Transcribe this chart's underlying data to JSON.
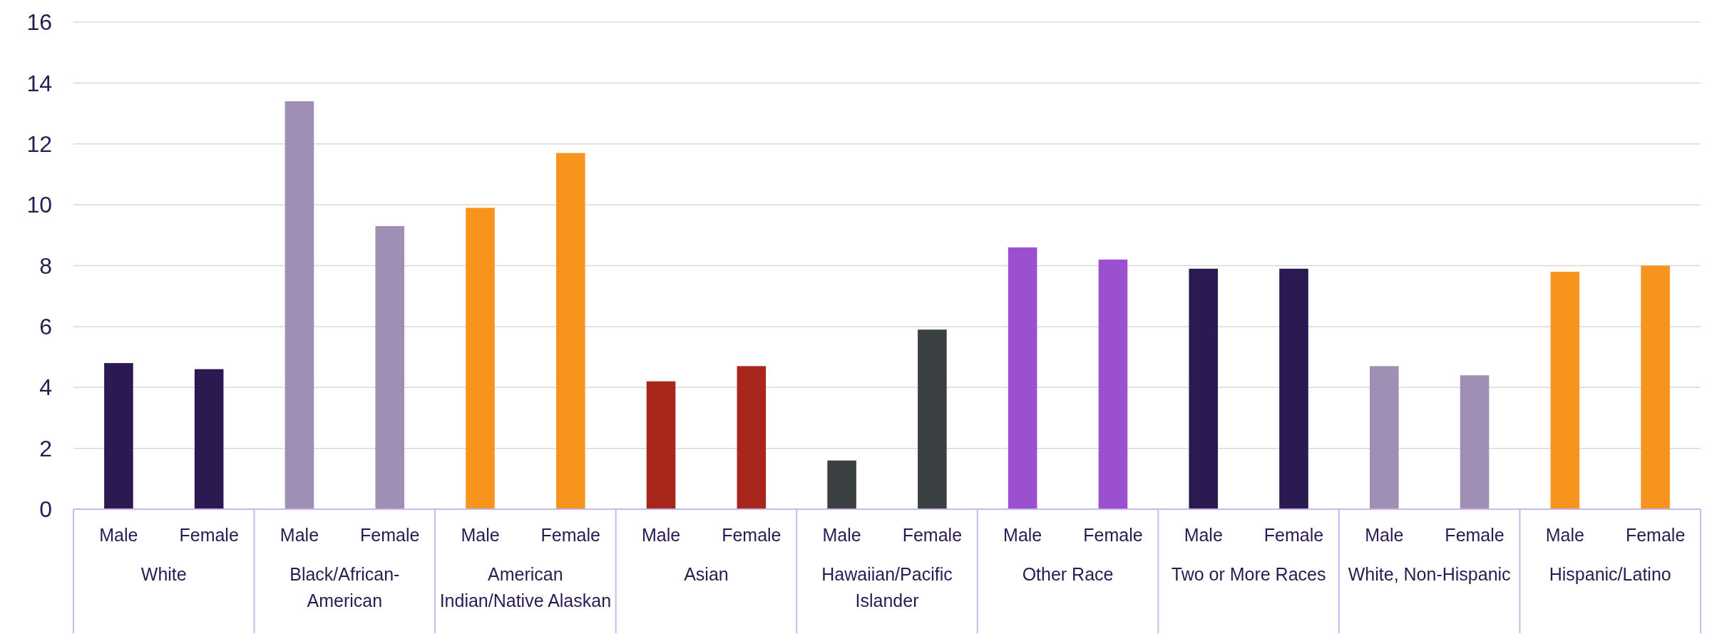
{
  "chart_data": {
    "type": "bar",
    "categories": [
      "Male",
      "Female",
      "Male",
      "Female",
      "Male",
      "Female",
      "Male",
      "Female",
      "Male",
      "Female",
      "Male",
      "Female",
      "Male",
      "Female",
      "Male",
      "Female",
      "Male",
      "Female"
    ],
    "values": [
      4.8,
      4.6,
      13.4,
      9.3,
      9.9,
      11.7,
      4.2,
      4.7,
      1.6,
      5.9,
      8.6,
      8.2,
      7.9,
      7.9,
      4.7,
      4.4,
      7.8,
      8.0
    ],
    "colors": [
      "#2b1a52",
      "#2b1a52",
      "#a08fb5",
      "#a08fb5",
      "#f7941d",
      "#f7941d",
      "#a8261b",
      "#a8261b",
      "#3a4042",
      "#3a4042",
      "#9b51cf",
      "#9b51cf",
      "#2b1a52",
      "#2b1a52",
      "#a08fb5",
      "#a08fb5",
      "#f7941d",
      "#f7941d"
    ],
    "annotations": [
      "White",
      "Black/African-American",
      "American Indian/Native Alaskan",
      "Asian",
      "Hawaiian/Pacific Islander",
      "Other Race",
      "Two or More Races",
      "White, Non-Hispanic",
      "Hispanic/Latino"
    ],
    "ylim": [
      0,
      16
    ],
    "yticks": [
      0,
      2,
      4,
      6,
      8,
      10,
      12,
      14,
      16
    ],
    "grid": "y"
  }
}
